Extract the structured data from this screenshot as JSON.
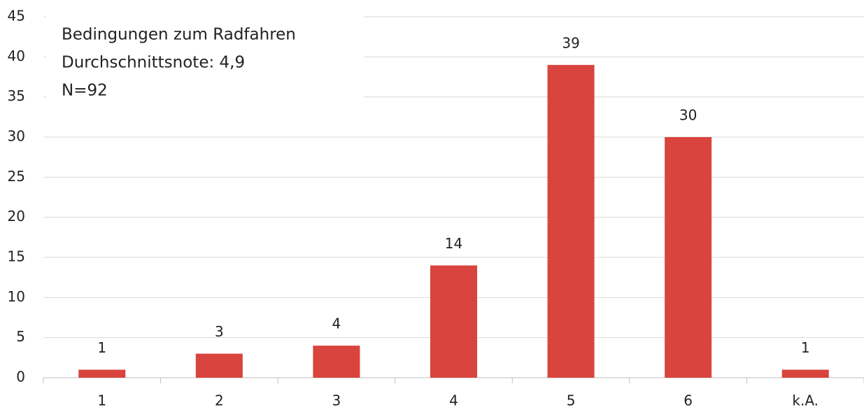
{
  "chart_data": {
    "type": "bar",
    "annotation": [
      "Bedingungen zum Radfahren",
      "Durchschnittsnote: 4,9",
      "N=92"
    ],
    "categories": [
      "1",
      "2",
      "3",
      "4",
      "5",
      "6",
      "k.A."
    ],
    "values": [
      1,
      3,
      4,
      14,
      39,
      30,
      1
    ],
    "color": "#d9443e",
    "ylim": [
      0,
      45
    ],
    "yticks": [
      0,
      5,
      10,
      15,
      20,
      25,
      30,
      35,
      40,
      45
    ],
    "grid": true
  }
}
